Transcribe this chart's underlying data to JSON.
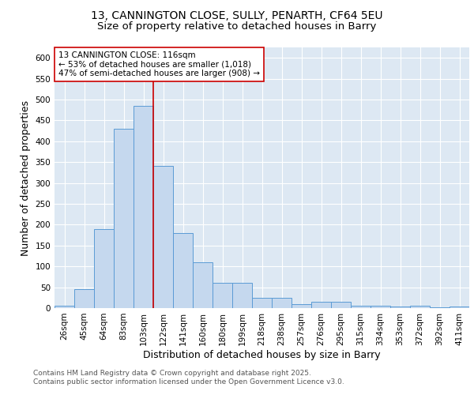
{
  "title_line1": "13, CANNINGTON CLOSE, SULLY, PENARTH, CF64 5EU",
  "title_line2": "Size of property relative to detached houses in Barry",
  "xlabel": "Distribution of detached houses by size in Barry",
  "ylabel": "Number of detached properties",
  "categories": [
    "26sqm",
    "45sqm",
    "64sqm",
    "83sqm",
    "103sqm",
    "122sqm",
    "141sqm",
    "160sqm",
    "180sqm",
    "199sqm",
    "218sqm",
    "238sqm",
    "257sqm",
    "276sqm",
    "295sqm",
    "315sqm",
    "334sqm",
    "353sqm",
    "372sqm",
    "392sqm",
    "411sqm"
  ],
  "values": [
    5,
    45,
    190,
    430,
    485,
    340,
    180,
    110,
    60,
    60,
    25,
    25,
    10,
    15,
    15,
    5,
    5,
    3,
    5,
    2,
    3
  ],
  "bar_color": "#c5d8ee",
  "bar_edge_color": "#5b9bd5",
  "vline_x_index": 4.5,
  "vline_color": "#cc0000",
  "annotation_text": "13 CANNINGTON CLOSE: 116sqm\n← 53% of detached houses are smaller (1,018)\n47% of semi-detached houses are larger (908) →",
  "annotation_box_color": "#ffffff",
  "annotation_box_edge": "#cc0000",
  "ylim": [
    0,
    625
  ],
  "yticks": [
    0,
    50,
    100,
    150,
    200,
    250,
    300,
    350,
    400,
    450,
    500,
    550,
    600
  ],
  "background_color": "#dde8f3",
  "grid_color": "#ffffff",
  "footnote": "Contains HM Land Registry data © Crown copyright and database right 2025.\nContains public sector information licensed under the Open Government Licence v3.0.",
  "title_fontsize": 10,
  "axis_label_fontsize": 9,
  "tick_fontsize": 7.5,
  "annotation_fontsize": 7.5,
  "footnote_fontsize": 6.5
}
